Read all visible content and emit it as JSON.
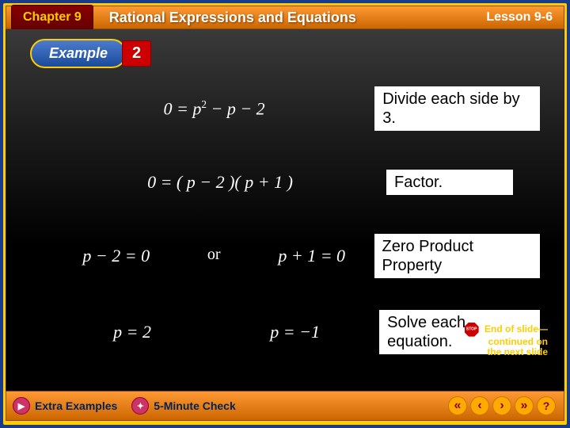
{
  "header": {
    "chapter": "Chapter 9",
    "title": "Rational Expressions and Equations",
    "lesson": "Lesson 9-6"
  },
  "example": {
    "label": "Example",
    "number": "2"
  },
  "steps": [
    {
      "equation_html": "0 = <i>p</i><span class='sup'>2</span> − <i>p</i> − 2",
      "explanation": "Divide each side by 3."
    },
    {
      "equation_html": "0 = ( <i>p</i> − 2 )( <i>p</i> + 1 )",
      "explanation": "Factor."
    },
    {
      "left": "<i>p</i> − 2 = 0",
      "mid": "or",
      "right": "<i>p</i> + 1 = 0",
      "explanation": "Zero Product Property"
    },
    {
      "left": "<i>p</i> = 2",
      "right": "<i>p</i> = −1",
      "explanation": "Solve each equation."
    }
  ],
  "endslide": {
    "line1": "End of slide—",
    "line2": "continued on",
    "line3": "the next slide"
  },
  "footer": {
    "btn1": "Extra Examples",
    "btn2": "5-Minute Check"
  },
  "colors": {
    "frame_outer": "#1a3a8a",
    "frame_inner": "#ffcc00",
    "header_grad_top": "#ff9933",
    "header_grad_bot": "#cc6600",
    "chapter_bg": "#770000",
    "main_bg": "#000000",
    "example_oval": "#2a5ab0",
    "example_num_bg": "#cc0000"
  }
}
